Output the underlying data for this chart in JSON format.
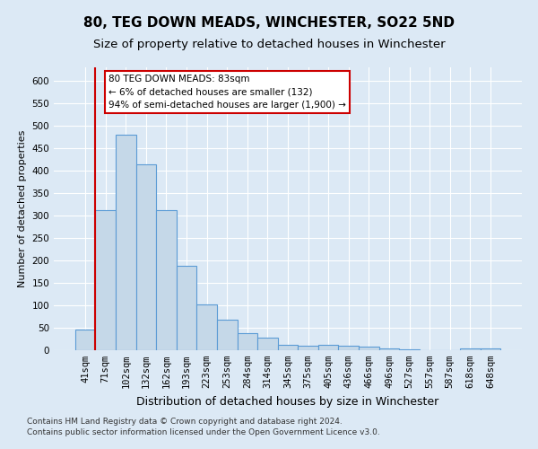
{
  "title": "80, TEG DOWN MEADS, WINCHESTER, SO22 5ND",
  "subtitle": "Size of property relative to detached houses in Winchester",
  "xlabel": "Distribution of detached houses by size in Winchester",
  "ylabel": "Number of detached properties",
  "categories": [
    "41sqm",
    "71sqm",
    "102sqm",
    "132sqm",
    "162sqm",
    "193sqm",
    "223sqm",
    "253sqm",
    "284sqm",
    "314sqm",
    "345sqm",
    "375sqm",
    "405sqm",
    "436sqm",
    "466sqm",
    "496sqm",
    "527sqm",
    "557sqm",
    "587sqm",
    "618sqm",
    "648sqm"
  ],
  "values": [
    46,
    312,
    480,
    415,
    313,
    188,
    103,
    69,
    38,
    29,
    13,
    11,
    12,
    11,
    8,
    5,
    3,
    1,
    1,
    4,
    4
  ],
  "bar_color": "#c5d8e8",
  "bar_edge_color": "#5b9bd5",
  "vline_x_idx": 1,
  "vline_color": "#cc0000",
  "annotation_text": "80 TEG DOWN MEADS: 83sqm\n← 6% of detached houses are smaller (132)\n94% of semi-detached houses are larger (1,900) →",
  "annotation_box_color": "#ffffff",
  "annotation_box_edge": "#cc0000",
  "ylim": [
    0,
    630
  ],
  "yticks": [
    0,
    50,
    100,
    150,
    200,
    250,
    300,
    350,
    400,
    450,
    500,
    550,
    600
  ],
  "footnote1": "Contains HM Land Registry data © Crown copyright and database right 2024.",
  "footnote2": "Contains public sector information licensed under the Open Government Licence v3.0.",
  "background_color": "#dce9f5",
  "title_fontsize": 11,
  "subtitle_fontsize": 9.5,
  "xlabel_fontsize": 9,
  "ylabel_fontsize": 8,
  "tick_fontsize": 7.5
}
